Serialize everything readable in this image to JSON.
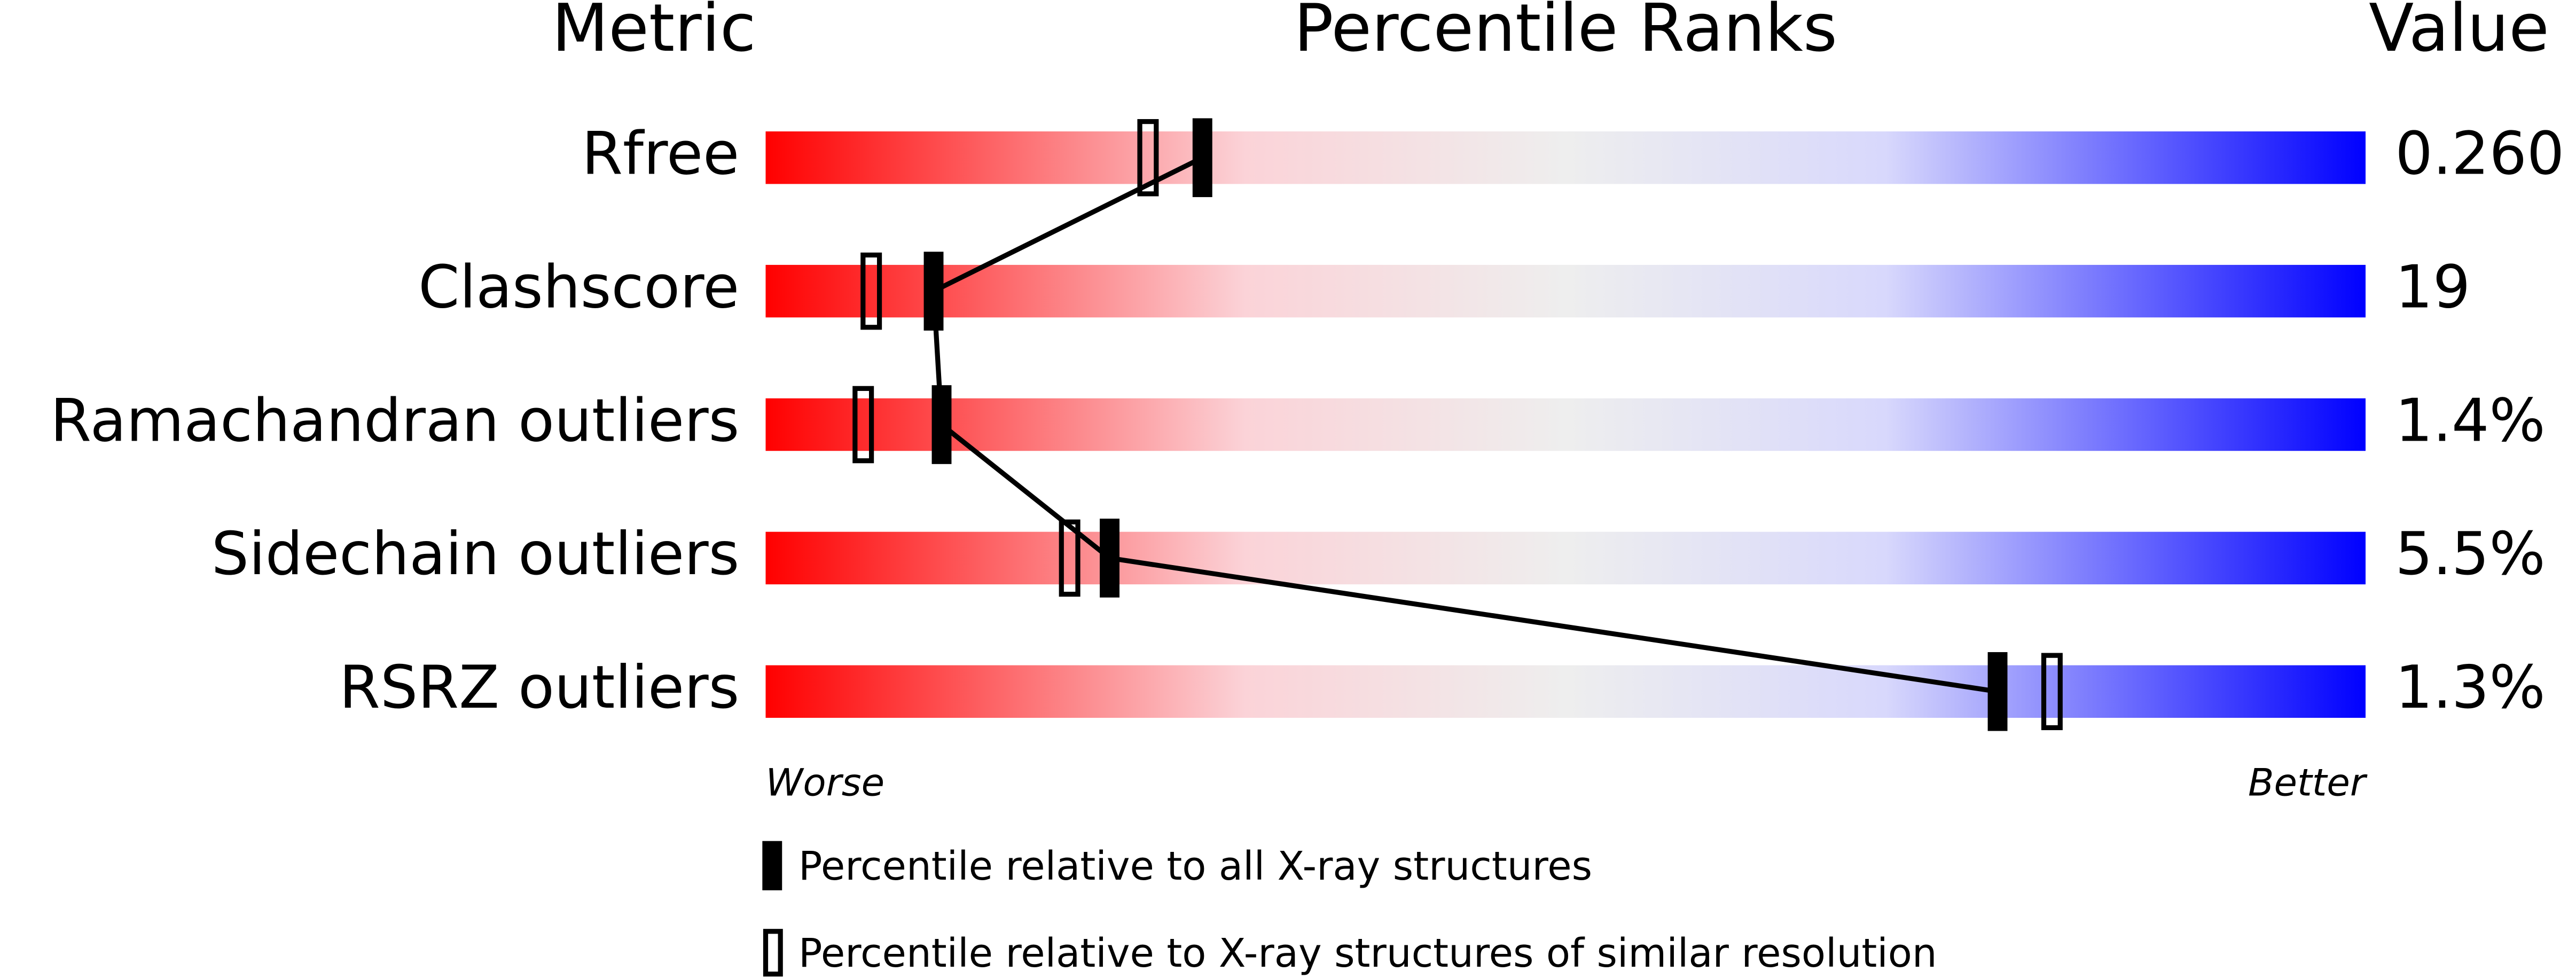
{
  "chart_data": {
    "type": "percentile",
    "headers": {
      "metric": "Metric",
      "ranks": "Percentile Ranks",
      "value": "Value"
    },
    "categories": [
      "Rfree",
      "Clashscore",
      "Ramachandran outliers",
      "Sidechain outliers",
      "RSRZ outliers"
    ],
    "metric_values": [
      "0.260",
      "19",
      "1.4%",
      "5.5%",
      "1.3%"
    ],
    "xlim": [
      0,
      100
    ],
    "x_axis_labels": {
      "low": "Worse",
      "high": "Better"
    },
    "series": [
      {
        "name": "Percentile relative to all X-ray structures",
        "color": "#000000",
        "style": "filled",
        "values": [
          27.3,
          10.5,
          11.0,
          21.5,
          77.0
        ]
      },
      {
        "name": "Percentile relative to X-ray structures of similar resolution",
        "color": "#000000",
        "style": "hollow",
        "values": [
          23.9,
          6.6,
          6.1,
          19.0,
          80.4
        ]
      }
    ]
  }
}
